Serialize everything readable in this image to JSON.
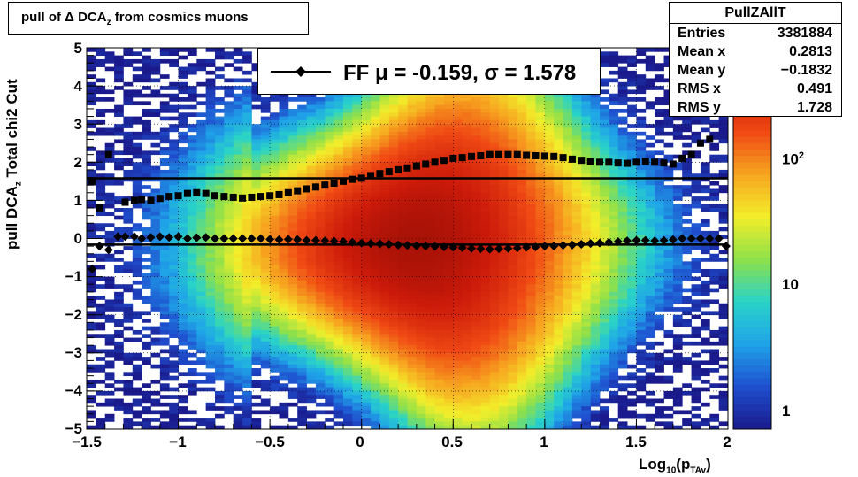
{
  "title": {
    "text_pre": "pull of Δ DCA",
    "text_sub": "z",
    "text_post": " from cosmics muons"
  },
  "stats": {
    "name": "PullZAllT",
    "rows": [
      {
        "key": "Entries",
        "value": "3381884"
      },
      {
        "key": "Mean x",
        "value": "0.2813"
      },
      {
        "key": "Mean y",
        "value": "−0.1832"
      },
      {
        "key": "RMS x",
        "value": "0.491"
      },
      {
        "key": "RMS y",
        "value": "1.728"
      }
    ]
  },
  "fit_legend": {
    "label": "FF μ = -0.159, σ =   1.578"
  },
  "axes": {
    "xlabel_pre": "Log",
    "xlabel_sub1": "10",
    "xlabel_mid": "(p",
    "xlabel_sub2": "TAv",
    "xlabel_post": ")",
    "ylabel_main": "pull DCA",
    "ylabel_sub": "z",
    "ylabel_cut": "   Total chi2 Cut",
    "xticks": [
      "−1.5",
      "−1",
      "−0.5",
      "0",
      "0.5",
      "1",
      "1.5",
      "2"
    ],
    "yticks": [
      "5",
      "4",
      "3",
      "2",
      "1",
      "0",
      "−1",
      "−2",
      "−3",
      "−4",
      "−5"
    ],
    "color_ticks": [
      {
        "base": "1",
        "exp": ""
      },
      {
        "base": "10",
        "exp": ""
      },
      {
        "base": "10",
        "exp": "2"
      }
    ]
  },
  "colors": {
    "fit_line": "#000000",
    "markers": "#000000",
    "palette": [
      "#1a1a8c",
      "#1f4fcf",
      "#1fa3e8",
      "#29d3c8",
      "#8ee04a",
      "#f2ee2a",
      "#f7a620",
      "#f04a14",
      "#cc1a0a",
      "#8c0c04"
    ]
  },
  "chart_data": {
    "type": "heatmap",
    "title": "pull of Δ DCAz from cosmics muons",
    "xlabel": "Log10(pTAv)",
    "ylabel": "pull DCAz   Total chi2 Cut",
    "xlim": [
      -1.5,
      2.0
    ],
    "ylim": [
      -5,
      5
    ],
    "z_scale": "log",
    "z_ticks": [
      1,
      10,
      100
    ],
    "grid": true,
    "legend": "top",
    "series": [
      {
        "name": "mean",
        "type": "markers",
        "x": [
          -1.47,
          -1.43,
          -1.38,
          -1.33,
          -1.29,
          -1.24,
          -1.2,
          -1.15,
          -1.1,
          -1.05,
          -1.0,
          -0.95,
          -0.9,
          -0.85,
          -0.8,
          -0.75,
          -0.7,
          -0.65,
          -0.6,
          -0.55,
          -0.5,
          -0.45,
          -0.4,
          -0.35,
          -0.3,
          -0.25,
          -0.2,
          -0.15,
          -0.1,
          -0.05,
          0.0,
          0.05,
          0.1,
          0.15,
          0.2,
          0.25,
          0.3,
          0.35,
          0.4,
          0.45,
          0.5,
          0.55,
          0.6,
          0.65,
          0.7,
          0.75,
          0.8,
          0.85,
          0.9,
          0.95,
          1.0,
          1.05,
          1.1,
          1.15,
          1.2,
          1.25,
          1.3,
          1.35,
          1.4,
          1.45,
          1.5,
          1.55,
          1.6,
          1.65,
          1.7,
          1.75,
          1.8,
          1.85,
          1.9,
          1.95,
          1.99
        ],
        "y": [
          -0.8,
          -0.2,
          -0.3,
          0.05,
          0.05,
          0.05,
          0.0,
          0.03,
          0.05,
          0.03,
          0.05,
          0.0,
          0.02,
          0.03,
          0.0,
          0.0,
          0.0,
          0.0,
          0.0,
          0.0,
          -0.02,
          -0.03,
          -0.02,
          -0.03,
          -0.05,
          -0.05,
          -0.06,
          -0.07,
          -0.08,
          -0.1,
          -0.12,
          -0.13,
          -0.14,
          -0.15,
          -0.17,
          -0.18,
          -0.19,
          -0.2,
          -0.21,
          -0.22,
          -0.23,
          -0.24,
          -0.26,
          -0.27,
          -0.28,
          -0.27,
          -0.26,
          -0.25,
          -0.23,
          -0.22,
          -0.2,
          -0.2,
          -0.18,
          -0.17,
          -0.15,
          -0.13,
          -0.12,
          -0.1,
          -0.08,
          -0.06,
          -0.05,
          -0.05,
          -0.06,
          -0.05,
          -0.03,
          0.0,
          0.0,
          0.0,
          0.0,
          0.0,
          -0.2
        ]
      },
      {
        "name": "sigma",
        "type": "squares",
        "x": [
          -1.47,
          -1.43,
          -1.38,
          -1.29,
          -1.24,
          -1.2,
          -1.15,
          -1.1,
          -1.05,
          -1.0,
          -0.95,
          -0.9,
          -0.85,
          -0.8,
          -0.75,
          -0.7,
          -0.65,
          -0.6,
          -0.55,
          -0.5,
          -0.45,
          -0.4,
          -0.35,
          -0.3,
          -0.25,
          -0.2,
          -0.15,
          -0.1,
          -0.05,
          0.0,
          0.05,
          0.1,
          0.15,
          0.2,
          0.25,
          0.3,
          0.35,
          0.4,
          0.45,
          0.5,
          0.55,
          0.6,
          0.65,
          0.7,
          0.75,
          0.8,
          0.85,
          0.9,
          0.95,
          1.0,
          1.05,
          1.1,
          1.15,
          1.2,
          1.25,
          1.3,
          1.35,
          1.4,
          1.45,
          1.5,
          1.55,
          1.6,
          1.65,
          1.7,
          1.75,
          1.8,
          1.85,
          1.9,
          1.95
        ],
        "y": [
          1.5,
          0.8,
          2.2,
          0.95,
          1.0,
          1.02,
          1.0,
          1.05,
          1.1,
          1.12,
          1.18,
          1.2,
          1.18,
          1.12,
          1.1,
          1.08,
          1.06,
          1.08,
          1.1,
          1.12,
          1.15,
          1.2,
          1.25,
          1.3,
          1.35,
          1.4,
          1.45,
          1.5,
          1.55,
          1.58,
          1.65,
          1.7,
          1.75,
          1.8,
          1.85,
          1.9,
          1.95,
          2.0,
          2.05,
          2.1,
          2.12,
          2.15,
          2.17,
          2.2,
          2.2,
          2.2,
          2.2,
          2.18,
          2.17,
          2.16,
          2.15,
          2.12,
          2.08,
          2.05,
          2.02,
          2.0,
          2.0,
          1.98,
          1.97,
          2.0,
          2.02,
          2.0,
          1.98,
          1.95,
          2.1,
          2.2,
          2.5,
          2.6,
          3.3
        ]
      },
      {
        "name": "fit_mu_line",
        "type": "hline",
        "y": -0.159
      },
      {
        "name": "fit_sigma_line",
        "type": "hline",
        "y": 1.578
      }
    ]
  }
}
